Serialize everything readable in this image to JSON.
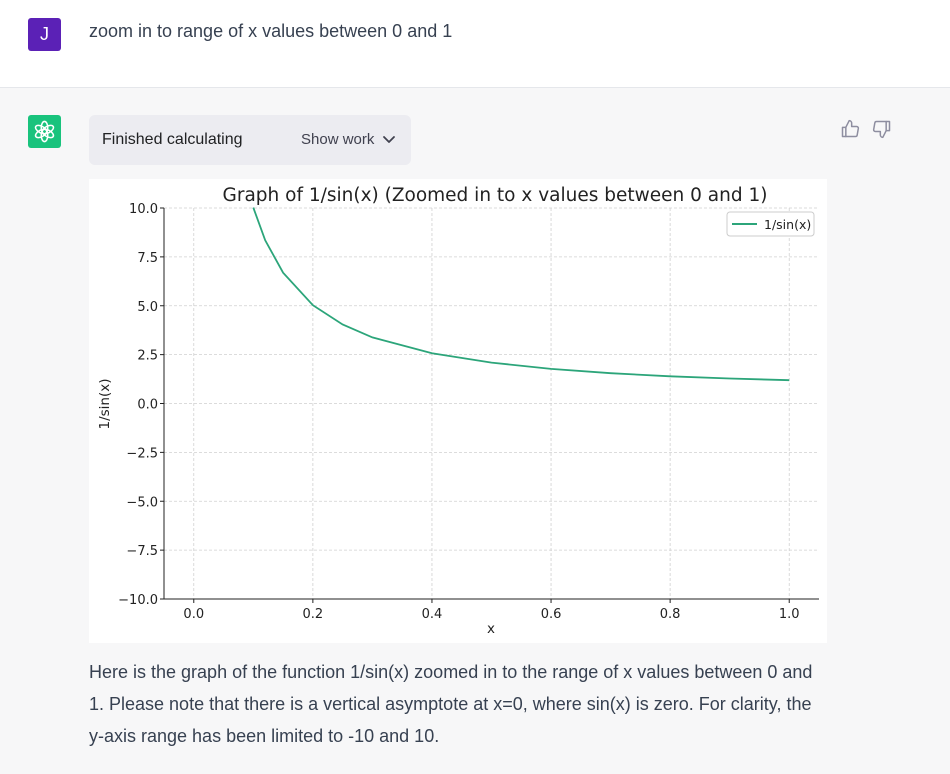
{
  "user": {
    "avatar_letter": "J",
    "message": "zoom in to range of x values between 0 and 1"
  },
  "assistant": {
    "tool_status": "Finished calculating",
    "show_work_label": "Show work",
    "response": "Here is the graph of the function 1/sin(x) zoomed in to the range of x values between 0 and 1. Please note that there is a vertical asymptote at x=0, where sin(x) is zero. For clarity, the y-axis range has been limited to -10 and 10."
  },
  "colors": {
    "user_avatar": "#5b21b6",
    "assistant_avatar": "#19c37d",
    "series_line": "#2ca57a"
  },
  "chart_data": {
    "type": "line",
    "title": "Graph of 1/sin(x) (Zoomed in to x values between 0 and 1)",
    "xlabel": "x",
    "ylabel": "1/sin(x)",
    "xlim": [
      -0.05,
      1.05
    ],
    "ylim": [
      -10,
      10
    ],
    "xticks": [
      "0.0",
      "0.2",
      "0.4",
      "0.6",
      "0.8",
      "1.0"
    ],
    "yticks": [
      "10.0",
      "7.5",
      "5.0",
      "2.5",
      "0.0",
      "−2.5",
      "−5.0",
      "−7.5",
      "−10.0"
    ],
    "grid": true,
    "legend_position": "top-right",
    "series": [
      {
        "name": "1/sin(x)",
        "x": [
          0.1,
          0.12,
          0.15,
          0.2,
          0.25,
          0.3,
          0.4,
          0.5,
          0.6,
          0.7,
          0.8,
          0.9,
          1.0
        ],
        "y": [
          10.02,
          8.35,
          6.69,
          5.03,
          4.04,
          3.38,
          2.57,
          2.09,
          1.77,
          1.55,
          1.39,
          1.28,
          1.19
        ]
      }
    ]
  }
}
